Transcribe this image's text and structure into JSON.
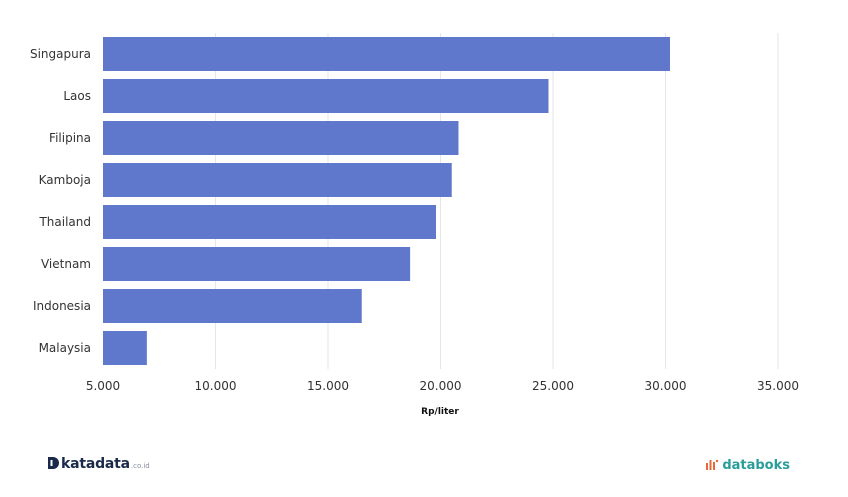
{
  "chart_data": {
    "type": "bar",
    "orientation": "horizontal",
    "categories": [
      "Singapura",
      "Laos",
      "Filipina",
      "Kamboja",
      "Thailand",
      "Vietnam",
      "Indonesia",
      "Malaysia"
    ],
    "values": [
      30200,
      24800,
      20800,
      20500,
      19800,
      18650,
      16500,
      6950
    ],
    "title": "",
    "xlabel": "Rp/liter",
    "ylabel": "",
    "xlim": [
      5000,
      35000
    ],
    "xticks": [
      5000,
      10000,
      15000,
      20000,
      25000,
      30000,
      35000
    ],
    "xtick_labels": [
      "5.000",
      "10.000",
      "15.000",
      "20.000",
      "25.000",
      "30.000",
      "35.000"
    ],
    "grid": true,
    "bar_color": "#6078cc",
    "grid_color": "#e6e6e6"
  },
  "footer": {
    "left_brand": "katadata",
    "left_brand_suffix": ".co.id",
    "right_brand": "databoks",
    "right_brand_color": "#2a9d9b",
    "right_logo_color": "#e8683a"
  }
}
